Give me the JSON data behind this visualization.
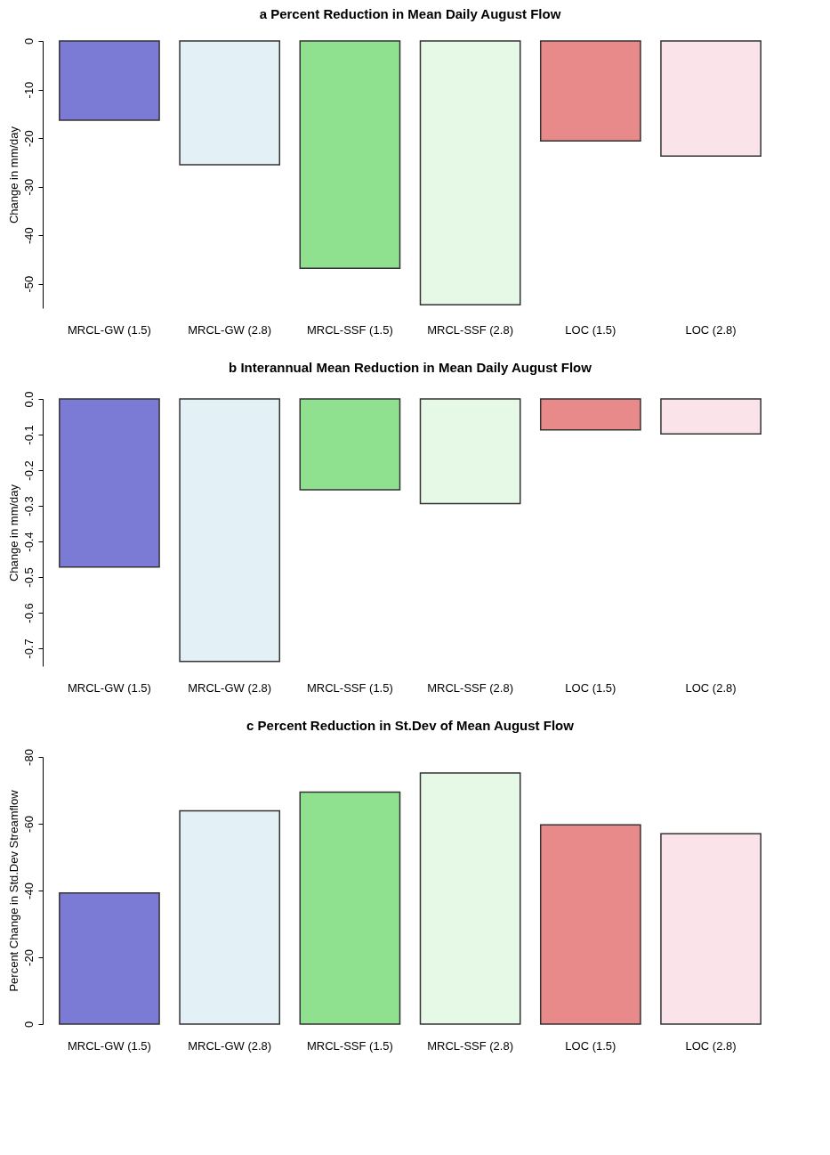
{
  "chart_data": [
    {
      "type": "bar",
      "title": "a Percent Reduction in Mean Daily August Flow",
      "ylabel": "Change in mm/day",
      "categories": [
        "MRCL-GW (1.5)",
        "MRCL-GW (2.8)",
        "MRCL-SSF (1.5)",
        "MRCL-SSF (2.8)",
        "LOC (1.5)",
        "LOC (2.8)"
      ],
      "values": [
        -16.3,
        -25.5,
        -46.8,
        -54.3,
        -20.6,
        -23.7
      ],
      "colors": [
        "#7b7bd6",
        "#e3f1f6",
        "#8fe08f",
        "#e6f8e6",
        "#e88a8a",
        "#fbe4e9"
      ],
      "ylim": [
        -55,
        0
      ],
      "yticks": [
        0,
        -10,
        -20,
        -30,
        -40,
        -50
      ]
    },
    {
      "type": "bar",
      "title": "b Interannual Mean Reduction in Mean Daily August Flow",
      "ylabel": "Change in mm/day",
      "categories": [
        "MRCL-GW (1.5)",
        "MRCL-GW (2.8)",
        "MRCL-SSF (1.5)",
        "MRCL-SSF (2.8)",
        "LOC (1.5)",
        "LOC (2.8)"
      ],
      "values": [
        -0.472,
        -0.737,
        -0.255,
        -0.294,
        -0.087,
        -0.098
      ],
      "colors": [
        "#7b7bd6",
        "#e3f1f6",
        "#8fe08f",
        "#e6f8e6",
        "#e88a8a",
        "#fbe4e9"
      ],
      "ylim": [
        -0.75,
        0
      ],
      "yticks": [
        {
          "value": 0,
          "label": "0.0"
        },
        -0.1,
        -0.2,
        -0.3,
        -0.4,
        -0.5,
        -0.6,
        -0.7
      ]
    },
    {
      "type": "bar",
      "title": "c Percent Reduction in  St.Dev of Mean August Flow",
      "ylabel": "Percent Change in Std.Dev Streamflow",
      "categories": [
        "MRCL-GW (1.5)",
        "MRCL-GW (2.8)",
        "MRCL-SSF (1.5)",
        "MRCL-SSF (2.8)",
        "LOC (1.5)",
        "LOC (2.8)"
      ],
      "values": [
        -39.3,
        -63.9,
        -69.5,
        -75.2,
        -59.7,
        -57.0
      ],
      "colors": [
        "#7b7bd6",
        "#e3f1f6",
        "#8fe08f",
        "#e6f8e6",
        "#e88a8a",
        "#fbe4e9"
      ],
      "ylim": [
        0,
        -80
      ],
      "yticks": [
        0,
        -20,
        -40,
        -60,
        -80
      ]
    }
  ]
}
